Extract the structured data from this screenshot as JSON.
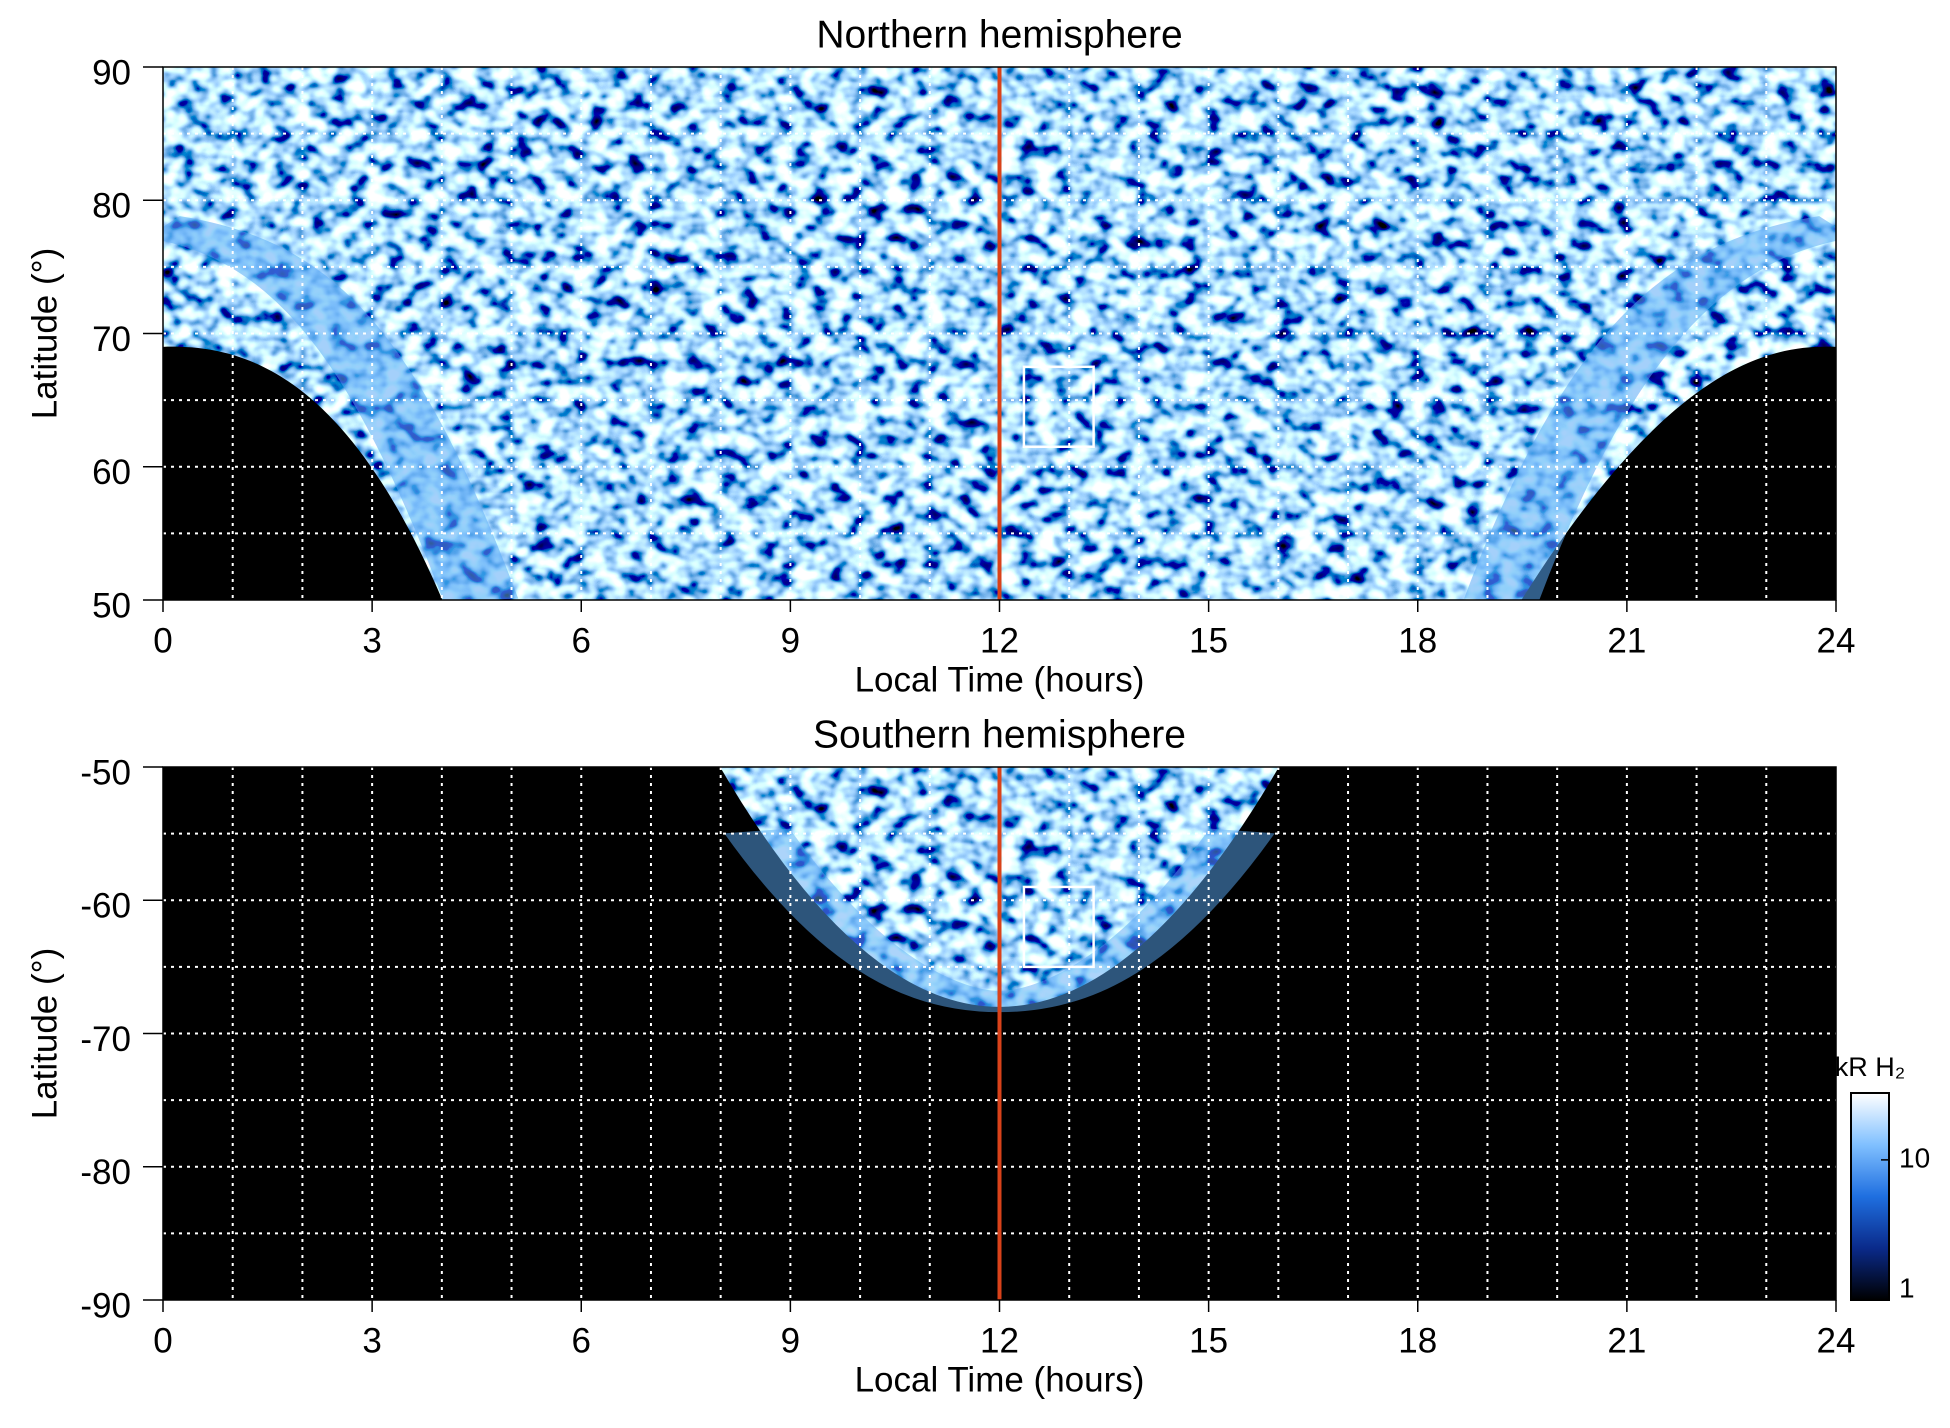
{
  "chart_data": [
    {
      "type": "heatmap",
      "title": "Northern hemisphere",
      "x_label": "Local Time (hours)",
      "y_label": "Latitude (°)",
      "xlim": [
        0,
        24
      ],
      "ylim": [
        50,
        90
      ],
      "xticks": [
        0,
        3,
        6,
        9,
        12,
        15,
        18,
        21,
        24
      ],
      "yticks": [
        50,
        60,
        70,
        80,
        90
      ],
      "xgrid": [
        1,
        2,
        3,
        4,
        5,
        6,
        7,
        8,
        9,
        10,
        11,
        12,
        13,
        14,
        15,
        16,
        17,
        18,
        19,
        20,
        21,
        22,
        23
      ],
      "ygrid": [
        55,
        60,
        65,
        70,
        75,
        80,
        85
      ],
      "vline": {
        "x": 12,
        "color": "#d9421a"
      },
      "box": {
        "xlim": [
          12.35,
          13.35
        ],
        "ylim": [
          61.5,
          67.5
        ],
        "color": "#ffffff"
      }
    },
    {
      "type": "heatmap",
      "title": "Southern hemisphere",
      "x_label": "Local Time (hours)",
      "y_label": "Latitude (°)",
      "xlim": [
        0,
        24
      ],
      "ylim": [
        -90,
        -50
      ],
      "xticks": [
        0,
        3,
        6,
        9,
        12,
        15,
        18,
        21,
        24
      ],
      "yticks": [
        -90,
        -80,
        -70,
        -60,
        -50
      ],
      "xgrid": [
        1,
        2,
        3,
        4,
        5,
        6,
        7,
        8,
        9,
        10,
        11,
        12,
        13,
        14,
        15,
        16,
        17,
        18,
        19,
        20,
        21,
        22,
        23
      ],
      "ygrid": [
        -85,
        -80,
        -75,
        -70,
        -65,
        -60,
        -55
      ],
      "vline": {
        "x": 12,
        "color": "#d9421a"
      },
      "box": {
        "xlim": [
          12.35,
          13.35
        ],
        "ylim": [
          -65,
          -59
        ],
        "color": "#ffffff"
      }
    },
    {
      "type": "colorbar",
      "label": "kR H₂",
      "log": true,
      "ylim": [
        1,
        30
      ],
      "yticks": [
        1,
        10
      ],
      "colors": [
        "#000000",
        "#0a2a8a",
        "#1f6fe0",
        "#80c0ff",
        "#ffffff"
      ]
    }
  ]
}
